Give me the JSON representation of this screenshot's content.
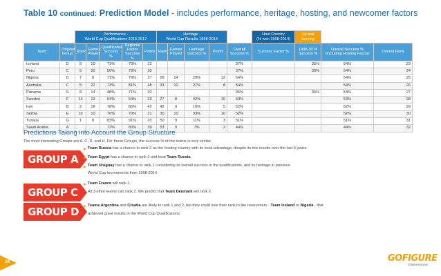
{
  "page": {
    "title_prefix": "Table 10",
    "title_continued": "continued:",
    "title_main": "Prediction Model",
    "title_rest": "- includes performance, heritage, hosting, and newcomer factors",
    "page_number": "26"
  },
  "table": {
    "groups": {
      "performance": "Performance -\nWorld Cup Qualifications 2015-2017",
      "heritage": "Heritage -\nWorld Cup Results 1998-2014",
      "host": "Host Country\n(% won 1998-2014)",
      "up_coming": "Up and\nComing"
    },
    "headers": {
      "team": "Team",
      "original_group": "Original\nGroup",
      "rank1": "Rank",
      "games_played1": "Games\nPlayed",
      "qual_success": "Qualifications\nSuccess %",
      "regional_factor": "Regional\nFactor\nSuccess %",
      "points1": "Points",
      "rank2": "Rank",
      "games_played2": "Games\nPlayed",
      "heritage_success": "Heritage\nSuccess %",
      "points2": "Points",
      "overall_success": "Overall\nSuccess %",
      "success_factor": "Success Factor %",
      "success_1998": "1998-2014\nSuccess %",
      "overall_incl": "Overall Success %\n(Including Hosting Factor)",
      "overall_rank": "Overall Rank"
    },
    "rows": [
      [
        "Iceland",
        "D",
        "9",
        "10",
        "73%",
        "73%",
        "22",
        "",
        "",
        "",
        "",
        "37%",
        "",
        "35%",
        "54%",
        "23"
      ],
      [
        "Peru",
        "C",
        "5",
        "20",
        "50%",
        "73%",
        "30",
        "",
        "",
        "",
        "",
        "37%",
        "",
        "35%",
        "54%",
        "24"
      ],
      [
        "Nigeria",
        "D",
        "7",
        "8",
        "71%",
        "79%",
        "17",
        "26",
        "14",
        "29%",
        "12",
        "54%",
        "",
        "",
        "54%",
        "25"
      ],
      [
        "Australia",
        "C",
        "5",
        "22",
        "73%",
        "81%",
        "48",
        "33",
        "10",
        "27%",
        "8",
        "54%",
        "",
        "",
        "54%",
        "26"
      ],
      [
        "Panama",
        "G",
        "8",
        "14",
        "48%",
        "71%",
        "20",
        "",
        "",
        "",
        "",
        "35%",
        "",
        "35%",
        "53%",
        "27"
      ],
      [
        "Sweden",
        "F",
        "13",
        "12",
        "64%",
        "64%",
        "23",
        "27",
        "8",
        "42%",
        "10",
        "53%",
        "",
        "",
        "53%",
        "28"
      ],
      [
        "Iran",
        "B",
        "2",
        "18",
        "78%",
        "86%",
        "42",
        "42",
        "9",
        "19%",
        "5",
        "52%",
        "",
        "",
        "52%",
        "29"
      ],
      [
        "Serbia",
        "E",
        "10",
        "10",
        "70%",
        "70%",
        "21",
        "30",
        "10",
        "33%",
        "10",
        "52%",
        "",
        "",
        "52%",
        "30"
      ],
      [
        "Tunisia",
        "G",
        "1",
        "8",
        "83%",
        "91%",
        "20",
        "50",
        "9",
        "11%",
        "3",
        "51%",
        "",
        "",
        "51%",
        "31"
      ],
      [
        "Saudi Arabia",
        "A",
        "",
        "",
        "72%",
        "80%",
        "39",
        "53",
        "9",
        "7%",
        "2",
        "44%",
        "",
        "",
        "44%",
        "32"
      ]
    ]
  },
  "section": {
    "heading": "Predictions Taking into Account the Group Structure",
    "intro": "The most interesting Groups are A, C, D, and H. For these Groups, the success % of the teams is very similar."
  },
  "groups": {
    "a": {
      "label": "GROUP A",
      "lines": [
        {
          "bold": "Team Russia",
          "text": " has a chance to rank 2 as the hosting country with its local advantage, despite its low results over the last 3 years."
        },
        {
          "bold": "Team Egypt",
          "text": " has a chance to rank 2 and beat ",
          "bold2": "Team Russia",
          "text2": "."
        },
        {
          "bold": "Team Uruguay",
          "text": " has a chance to rank 1 considering its overall success in the qualifications, and its heritage in previous"
        },
        {
          "bold": "",
          "text": "World Cup tournaments from 1998-2014."
        }
      ]
    },
    "c": {
      "label": "GROUP C",
      "lines": [
        {
          "bold": "Team France",
          "text": " will rank 1."
        },
        {
          "bold": "",
          "text": "All 3 other teams can rank 2. We predict that ",
          "bold2": "Team Denmark",
          "text2": " will rank 2."
        }
      ]
    },
    "d": {
      "label": "GROUP D",
      "lines": [
        {
          "bold": "Teams Argentina",
          "text": " and ",
          "bold2": "Croatia",
          "text2": " are likely to rank 1 and 2, but they could lose their rank to the newcomers - ",
          "bold3": "Team Iceland",
          "text3": " or ",
          "bold4": "Nigeria",
          "text4": " - that"
        },
        {
          "bold": "",
          "text": "achieved great results in the World Cup Qualifications."
        }
      ]
    }
  },
  "logo": {
    "word": "GOFIGURE",
    "sub": "Dimensions"
  },
  "colors": {
    "title_blue": "#1e6ea8",
    "header_dark": "#1e79bd",
    "header_light": "#4b9fd8",
    "accent_orange": "#f2a10a",
    "group_red": "#e53b2c"
  }
}
